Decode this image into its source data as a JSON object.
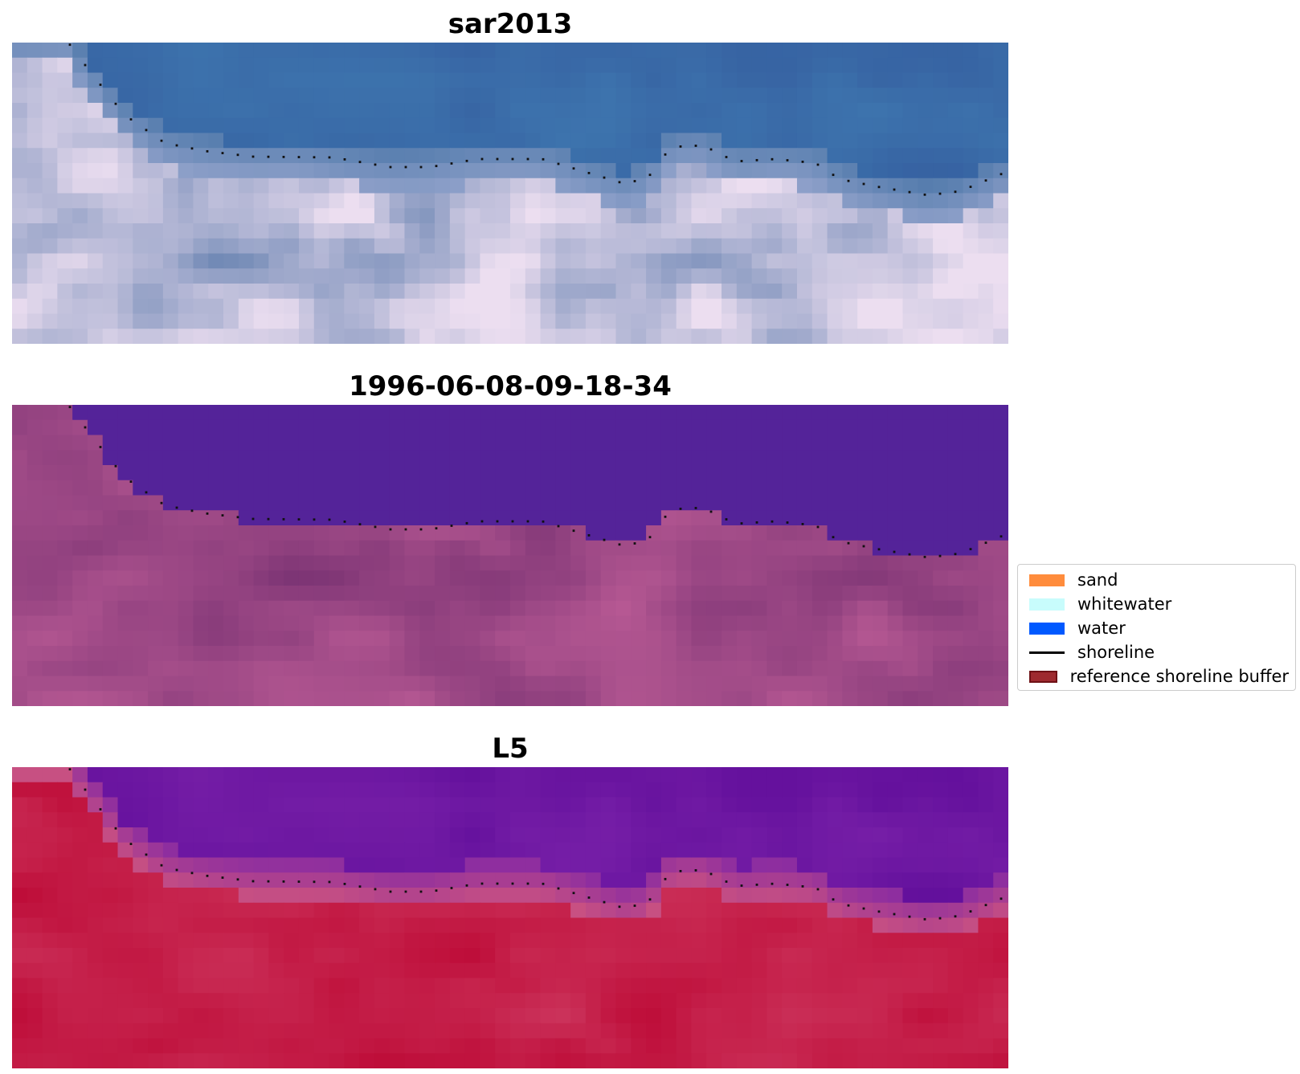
{
  "panels": [
    {
      "title": "sar2013",
      "palette": "rgb"
    },
    {
      "title": "1996-06-08-09-18-34",
      "palette": "classified"
    },
    {
      "title": "L5",
      "palette": "ndwi"
    }
  ],
  "legend": {
    "items": [
      {
        "label": "sand",
        "kind": "patch",
        "color": "#ff8c3c"
      },
      {
        "label": "whitewater",
        "kind": "patch",
        "color": "#c8fcfc"
      },
      {
        "label": "water",
        "kind": "patch",
        "color": "#0059ff"
      },
      {
        "label": "shoreline",
        "kind": "line",
        "color": "#000000"
      },
      {
        "label": "reference shoreline buffer",
        "kind": "patch",
        "color": "#9e2a2f",
        "edge": "#6e1015"
      }
    ]
  },
  "colors": {
    "background": "#ffffff",
    "shoreline_dots": "#111111",
    "rgb_water": "#3b64a3",
    "rgb_beach": "#c8cbe0",
    "classified_water": "#53239a",
    "classified_land": "#944b86",
    "ndwi_water": "#6a1a9e",
    "ndwi_land": "#c41f4c"
  }
}
